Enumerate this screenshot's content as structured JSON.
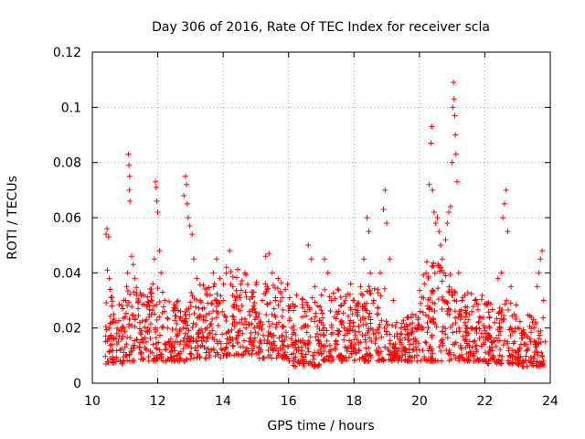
{
  "chart_data": {
    "type": "scatter",
    "title": "Day 306 of 2016, Rate Of TEC Index for receiver scla",
    "xlabel": "GPS time / hours",
    "ylabel": "ROTI / TECUs",
    "xlim": [
      10,
      24
    ],
    "ylim": [
      0,
      0.12
    ],
    "xticks": [
      10,
      12,
      14,
      16,
      18,
      20,
      22,
      24
    ],
    "xtick_labels": [
      "10",
      "12",
      "14",
      "16",
      "18",
      "20",
      "22",
      "24"
    ],
    "yticks": [
      0,
      0.02,
      0.04,
      0.06,
      0.08,
      0.1,
      0.12
    ],
    "ytick_labels": [
      "0",
      "0.02",
      "0.04",
      "0.06",
      "0.08",
      "0.1",
      "0.12"
    ],
    "grid": true,
    "marker": "+",
    "color": "#ff0000",
    "series": [
      {
        "name": "ROTI",
        "points": [
          [
            10.42,
            0.054
          ],
          [
            10.45,
            0.056
          ],
          [
            10.5,
            0.053
          ],
          [
            10.46,
            0.041
          ],
          [
            10.52,
            0.038
          ],
          [
            10.55,
            0.034
          ],
          [
            10.6,
            0.028
          ],
          [
            10.65,
            0.025
          ],
          [
            10.7,
            0.022
          ],
          [
            10.75,
            0.018
          ],
          [
            10.8,
            0.015
          ],
          [
            10.85,
            0.012
          ],
          [
            10.9,
            0.016
          ],
          [
            10.95,
            0.02
          ],
          [
            11.0,
            0.024
          ],
          [
            11.02,
            0.03
          ],
          [
            11.05,
            0.035
          ],
          [
            11.08,
            0.04
          ],
          [
            11.1,
            0.083
          ],
          [
            11.12,
            0.079
          ],
          [
            11.14,
            0.075
          ],
          [
            11.13,
            0.07
          ],
          [
            11.15,
            0.066
          ],
          [
            11.2,
            0.046
          ],
          [
            11.25,
            0.043
          ],
          [
            11.3,
            0.038
          ],
          [
            11.35,
            0.032
          ],
          [
            11.4,
            0.027
          ],
          [
            11.45,
            0.022
          ],
          [
            11.5,
            0.019
          ],
          [
            11.55,
            0.016
          ],
          [
            11.6,
            0.013
          ],
          [
            11.65,
            0.015
          ],
          [
            11.7,
            0.02
          ],
          [
            11.75,
            0.025
          ],
          [
            11.8,
            0.03
          ],
          [
            11.85,
            0.036
          ],
          [
            11.9,
            0.045
          ],
          [
            11.93,
            0.073
          ],
          [
            11.95,
            0.071
          ],
          [
            11.97,
            0.066
          ],
          [
            12.0,
            0.062
          ],
          [
            12.05,
            0.048
          ],
          [
            12.1,
            0.04
          ],
          [
            12.15,
            0.033
          ],
          [
            12.2,
            0.026
          ],
          [
            12.3,
            0.02
          ],
          [
            12.4,
            0.016
          ],
          [
            12.5,
            0.013
          ],
          [
            12.6,
            0.018
          ],
          [
            12.7,
            0.024
          ],
          [
            12.8,
            0.068
          ],
          [
            12.85,
            0.075
          ],
          [
            12.88,
            0.072
          ],
          [
            12.9,
            0.065
          ],
          [
            12.93,
            0.06
          ],
          [
            12.98,
            0.057
          ],
          [
            13.05,
            0.054
          ],
          [
            13.1,
            0.045
          ],
          [
            13.2,
            0.038
          ],
          [
            13.3,
            0.03
          ],
          [
            13.4,
            0.024
          ],
          [
            13.5,
            0.02
          ],
          [
            13.6,
            0.032
          ],
          [
            13.7,
            0.04
          ],
          [
            13.8,
            0.045
          ],
          [
            13.9,
            0.038
          ],
          [
            14.0,
            0.03
          ],
          [
            14.1,
            0.042
          ],
          [
            14.2,
            0.048
          ],
          [
            14.3,
            0.035
          ],
          [
            14.4,
            0.028
          ],
          [
            14.5,
            0.022
          ],
          [
            14.6,
            0.018
          ],
          [
            14.7,
            0.02
          ],
          [
            14.8,
            0.026
          ],
          [
            14.9,
            0.033
          ],
          [
            15.0,
            0.024
          ],
          [
            15.1,
            0.02
          ],
          [
            15.2,
            0.03
          ],
          [
            15.3,
            0.046
          ],
          [
            15.4,
            0.047
          ],
          [
            15.5,
            0.04
          ],
          [
            15.6,
            0.03
          ],
          [
            15.7,
            0.022
          ],
          [
            15.8,
            0.017
          ],
          [
            15.9,
            0.034
          ],
          [
            16.0,
            0.028
          ],
          [
            16.1,
            0.02
          ],
          [
            16.2,
            0.014
          ],
          [
            16.3,
            0.012
          ],
          [
            16.4,
            0.02
          ],
          [
            16.5,
            0.026
          ],
          [
            16.6,
            0.05
          ],
          [
            16.7,
            0.045
          ],
          [
            16.75,
            0.01
          ],
          [
            16.8,
            0.035
          ],
          [
            16.9,
            0.028
          ],
          [
            17.0,
            0.022
          ],
          [
            17.1,
            0.045
          ],
          [
            17.2,
            0.04
          ],
          [
            17.3,
            0.03
          ],
          [
            17.4,
            0.024
          ],
          [
            17.5,
            0.034
          ],
          [
            17.6,
            0.028
          ],
          [
            17.7,
            0.02
          ],
          [
            17.8,
            0.018
          ],
          [
            17.9,
            0.036
          ],
          [
            18.0,
            0.03
          ],
          [
            18.1,
            0.025
          ],
          [
            18.2,
            0.035
          ],
          [
            18.3,
            0.045
          ],
          [
            18.4,
            0.06
          ],
          [
            18.45,
            0.055
          ],
          [
            18.5,
            0.04
          ],
          [
            18.6,
            0.03
          ],
          [
            18.7,
            0.025
          ],
          [
            18.8,
            0.04
          ],
          [
            18.9,
            0.063
          ],
          [
            18.95,
            0.07
          ],
          [
            19.0,
            0.058
          ],
          [
            19.1,
            0.045
          ],
          [
            19.2,
            0.03
          ],
          [
            19.3,
            0.022
          ],
          [
            19.4,
            0.016
          ],
          [
            19.5,
            0.013
          ],
          [
            19.6,
            0.012
          ],
          [
            19.7,
            0.014
          ],
          [
            19.8,
            0.012
          ],
          [
            19.9,
            0.015
          ],
          [
            20.0,
            0.012
          ],
          [
            20.1,
            0.02
          ],
          [
            20.15,
            0.036
          ],
          [
            20.2,
            0.04
          ],
          [
            20.25,
            0.028
          ],
          [
            20.3,
            0.072
          ],
          [
            20.35,
            0.087
          ],
          [
            20.38,
            0.093
          ],
          [
            20.4,
            0.07
          ],
          [
            20.45,
            0.062
          ],
          [
            20.5,
            0.058
          ],
          [
            20.55,
            0.06
          ],
          [
            20.6,
            0.055
          ],
          [
            20.65,
            0.05
          ],
          [
            20.7,
            0.045
          ],
          [
            20.75,
            0.04
          ],
          [
            20.8,
            0.052
          ],
          [
            20.85,
            0.058
          ],
          [
            20.9,
            0.062
          ],
          [
            20.95,
            0.064
          ],
          [
            21.0,
            0.08
          ],
          [
            21.02,
            0.1
          ],
          [
            21.04,
            0.109
          ],
          [
            21.06,
            0.103
          ],
          [
            21.08,
            0.097
          ],
          [
            21.1,
            0.09
          ],
          [
            21.12,
            0.083
          ],
          [
            21.15,
            0.073
          ],
          [
            21.2,
            0.04
          ],
          [
            21.3,
            0.03
          ],
          [
            21.4,
            0.024
          ],
          [
            21.5,
            0.018
          ],
          [
            21.6,
            0.026
          ],
          [
            21.7,
            0.03
          ],
          [
            21.8,
            0.022
          ],
          [
            21.9,
            0.018
          ],
          [
            22.0,
            0.02
          ],
          [
            22.1,
            0.018
          ],
          [
            22.2,
            0.015
          ],
          [
            22.3,
            0.022
          ],
          [
            22.4,
            0.038
          ],
          [
            22.5,
            0.04
          ],
          [
            22.55,
            0.06
          ],
          [
            22.6,
            0.065
          ],
          [
            22.65,
            0.07
          ],
          [
            22.7,
            0.055
          ],
          [
            22.8,
            0.035
          ],
          [
            22.9,
            0.025
          ],
          [
            23.0,
            0.02
          ],
          [
            23.1,
            0.014
          ],
          [
            23.2,
            0.018
          ],
          [
            23.3,
            0.012
          ],
          [
            23.4,
            0.015
          ],
          [
            23.5,
            0.02
          ],
          [
            23.6,
            0.035
          ],
          [
            23.65,
            0.04
          ],
          [
            23.7,
            0.045
          ],
          [
            23.75,
            0.048
          ],
          [
            23.8,
            0.03
          ],
          [
            23.85,
            0.015
          ]
        ],
        "dense_band": {
          "x_range": [
            10.4,
            23.85
          ],
          "hour_blocks": [
            [
              10.4,
              11.0,
              0.007,
              0.032
            ],
            [
              11.0,
              12.0,
              0.008,
              0.035
            ],
            [
              12.0,
              13.0,
              0.008,
              0.03
            ],
            [
              13.0,
              14.0,
              0.009,
              0.036
            ],
            [
              14.0,
              15.0,
              0.01,
              0.042
            ],
            [
              15.0,
              16.0,
              0.009,
              0.038
            ],
            [
              16.0,
              17.0,
              0.006,
              0.032
            ],
            [
              17.0,
              18.0,
              0.008,
              0.034
            ],
            [
              18.0,
              19.0,
              0.008,
              0.036
            ],
            [
              19.0,
              20.0,
              0.008,
              0.025
            ],
            [
              20.0,
              21.0,
              0.008,
              0.045
            ],
            [
              21.0,
              22.0,
              0.008,
              0.034
            ],
            [
              22.0,
              23.0,
              0.007,
              0.03
            ],
            [
              23.0,
              23.85,
              0.006,
              0.025
            ]
          ],
          "points_per_hour": 120
        }
      }
    ]
  }
}
